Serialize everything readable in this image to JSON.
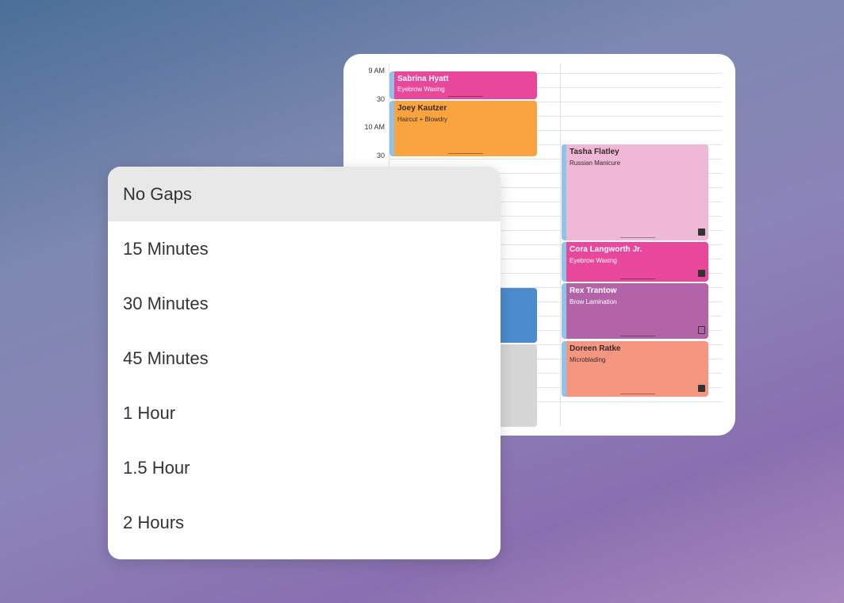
{
  "calendar": {
    "time_labels": [
      "9 AM",
      "30",
      "10 AM",
      "30"
    ],
    "left_column": [
      {
        "name": "Sabrina Hyatt",
        "service": "Eyebrow Waxing",
        "color": "#e8479b"
      },
      {
        "name": "Joey Kautzer",
        "service": "Haircut + Blowdry",
        "color": "#f9a43f"
      },
      {
        "name": "",
        "service": "",
        "color": "#4a8ccc"
      },
      {
        "name": "",
        "service": "",
        "color": "#d6d6d6"
      }
    ],
    "right_column": [
      {
        "name": "Tasha Flatley",
        "service": "Russian Manicure",
        "color": "#efb8d6",
        "icon": "note-icon"
      },
      {
        "name": "Cora Langworth Jr.",
        "service": "Eyebrow Waxing",
        "color": "#e8479b",
        "icon": "note-icon"
      },
      {
        "name": "Rex Trantow",
        "service": "Brow Lamination",
        "color": "#b363a8",
        "icon": "clipboard-icon"
      },
      {
        "name": "Doreen Ratke",
        "service": "Microblading",
        "color": "#f59680",
        "icon": "note-icon"
      }
    ]
  },
  "gap_dropdown": {
    "selected": "No Gaps",
    "options": [
      "No Gaps",
      "15 Minutes",
      "30 Minutes",
      "45 Minutes",
      "1 Hour",
      "1.5 Hour",
      "2 Hours"
    ]
  }
}
